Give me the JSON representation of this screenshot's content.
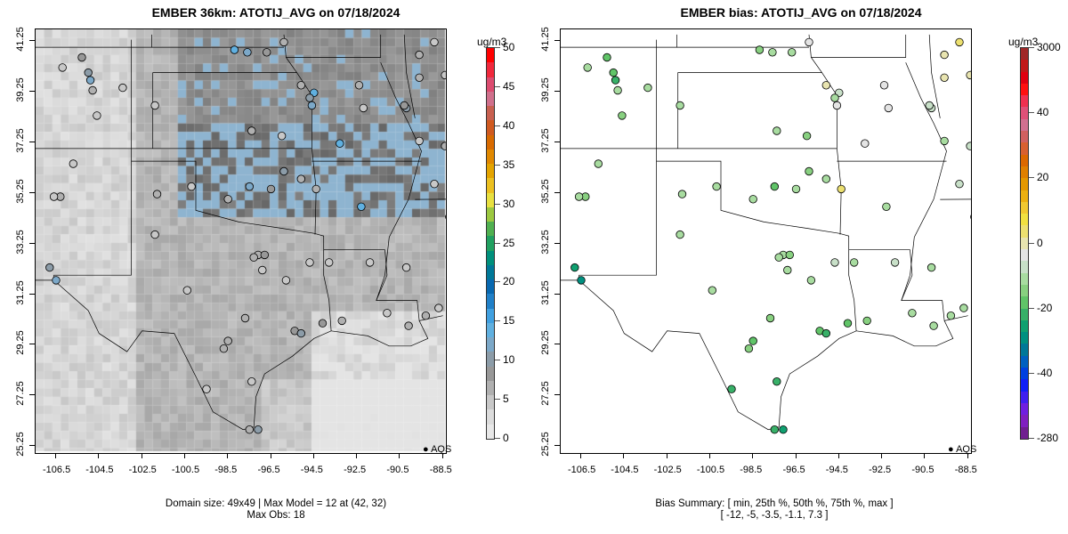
{
  "left": {
    "title": "EMBER 36km: ATOTIJ_AVG on 07/18/2024",
    "footer": [
      "Domain size: 49x49 | Max Model = 12 at (42, 32)",
      "Max Obs: 18"
    ],
    "legend": "AQS",
    "colorbar": {
      "unit": "ug/m3",
      "labels": [
        "50",
        "45",
        "40",
        "35",
        "30",
        "25",
        "20",
        "15",
        "10",
        "5",
        "0"
      ],
      "colors": [
        "#ff0000",
        "#f0283c",
        "#dc4c70",
        "#d0708c",
        "#c86050",
        "#d05a20",
        "#d86a00",
        "#e08800",
        "#e4a400",
        "#ecc020",
        "#e8e040",
        "#9cc840",
        "#50b050",
        "#20a060",
        "#00907c",
        "#007898",
        "#0868b0",
        "#2080c8",
        "#40a0e0",
        "#60b0e0",
        "#7ca8c8",
        "#8c9ca8",
        "#989898",
        "#b0b0b0",
        "#c8c8c8",
        "#dcdcdc",
        "#e8e8e8"
      ]
    }
  },
  "right": {
    "title": "EMBER bias: ATOTIJ_AVG on 07/18/2024",
    "footer": [
      "Bias Summary: [ min, 25th %, 50th %, 75th %, max ]",
      "[ -12,   -5,   -3.5,   -1.1,   7.3 ]"
    ],
    "legend": "AQS",
    "colorbar": {
      "unit": "ug/m3",
      "labels": [
        "3000",
        "40",
        "20",
        "0",
        "-20",
        "-40",
        "-280"
      ],
      "colors": [
        "#a02828",
        "#c01818",
        "#e00010",
        "#ff1010",
        "#f03050",
        "#e05078",
        "#d07090",
        "#d06060",
        "#d86030",
        "#dc6800",
        "#e08000",
        "#e49800",
        "#ecb010",
        "#f0c830",
        "#f0e040",
        "#ece070",
        "#e8e4b0",
        "#e4e4e4",
        "#c8e0c8",
        "#a8dca0",
        "#88d080",
        "#60c468",
        "#38b068",
        "#10a070",
        "#009080",
        "#007898",
        "#0060c0",
        "#0040e0",
        "#1020f8",
        "#4020f0",
        "#7020e0",
        "#8020c0",
        "#702090"
      ]
    }
  },
  "axes": {
    "xticks": [
      "-106.5",
      "-104.5",
      "-102.5",
      "-100.5",
      "-98.5",
      "-96.5",
      "-94.5",
      "-92.5",
      "-90.5",
      "-88.5"
    ],
    "yticks": [
      "41.25",
      "39.25",
      "37.25",
      "35.25",
      "33.25",
      "31.25",
      "29.25",
      "27.25",
      "25.25"
    ]
  },
  "chart_data": [
    {
      "type": "heatmap",
      "title": "EMBER 36km: ATOTIJ_AVG on 07/18/2024",
      "zlim": [
        0,
        50
      ],
      "unit": "ug/m3",
      "max_model": 12,
      "max_model_cell": [
        42,
        32
      ],
      "max_obs": 18,
      "grid": "49x49",
      "xlim": [
        -107.4,
        -88.3
      ],
      "ylim": [
        25.0,
        41.7
      ]
    },
    {
      "type": "scatter",
      "title": "EMBER bias: ATOTIJ_AVG on 07/18/2024",
      "zlim": [
        -280,
        3000
      ],
      "unit": "ug/m3",
      "summary": {
        "min": -12,
        "p25": -5,
        "p50": -3.5,
        "p75": -1.1,
        "max": 7.3
      }
    }
  ]
}
